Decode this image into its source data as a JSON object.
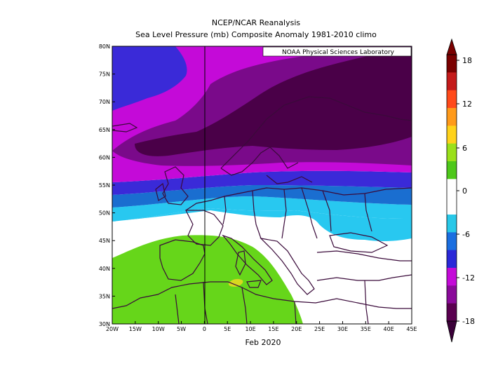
{
  "title": "NCEP/NCAR Reanalysis",
  "subtitle": "Sea Level Pressure (mb) Composite Anomaly 1981-2010 climo",
  "credit": "NOAA Physical Sciences Laboratory",
  "period_label": "Feb 2020",
  "lon_ticks": [
    "20W",
    "15W",
    "10W",
    "5W",
    "0",
    "5E",
    "10E",
    "15E",
    "20E",
    "25E",
    "30E",
    "35E",
    "40E",
    "45E"
  ],
  "lat_ticks": [
    "30N",
    "35N",
    "40N",
    "45N",
    "50N",
    "55N",
    "60N",
    "65N",
    "70N",
    "75N",
    "80N"
  ],
  "colorbar": {
    "ticks": [
      "18",
      "12",
      "6",
      "0",
      "-6",
      "-12",
      "-18"
    ],
    "colors": [
      "#7a0000",
      "#c41a1a",
      "#ff4a1a",
      "#ff9a1a",
      "#ffd21a",
      "#9ae01a",
      "#4ec81a",
      "#ffffff",
      "#ffffff",
      "#28c8e8",
      "#1a6ee0",
      "#2a28d8",
      "#c40ad8",
      "#8a0a9a",
      "#5a0050"
    ]
  },
  "legend_colors": {
    "le_-15": "#4a0048",
    "-15_-12": "#7a0a8a",
    "-12_-9": "#c40ad8",
    "-9_-6": "#3a2ad8",
    "-6_-3": "#1a6ed0",
    "-3_0": "#28c8f0",
    "0_3": "#ffffff",
    "3_6": "#66d61a",
    "6_9": "#d8d820"
  }
}
